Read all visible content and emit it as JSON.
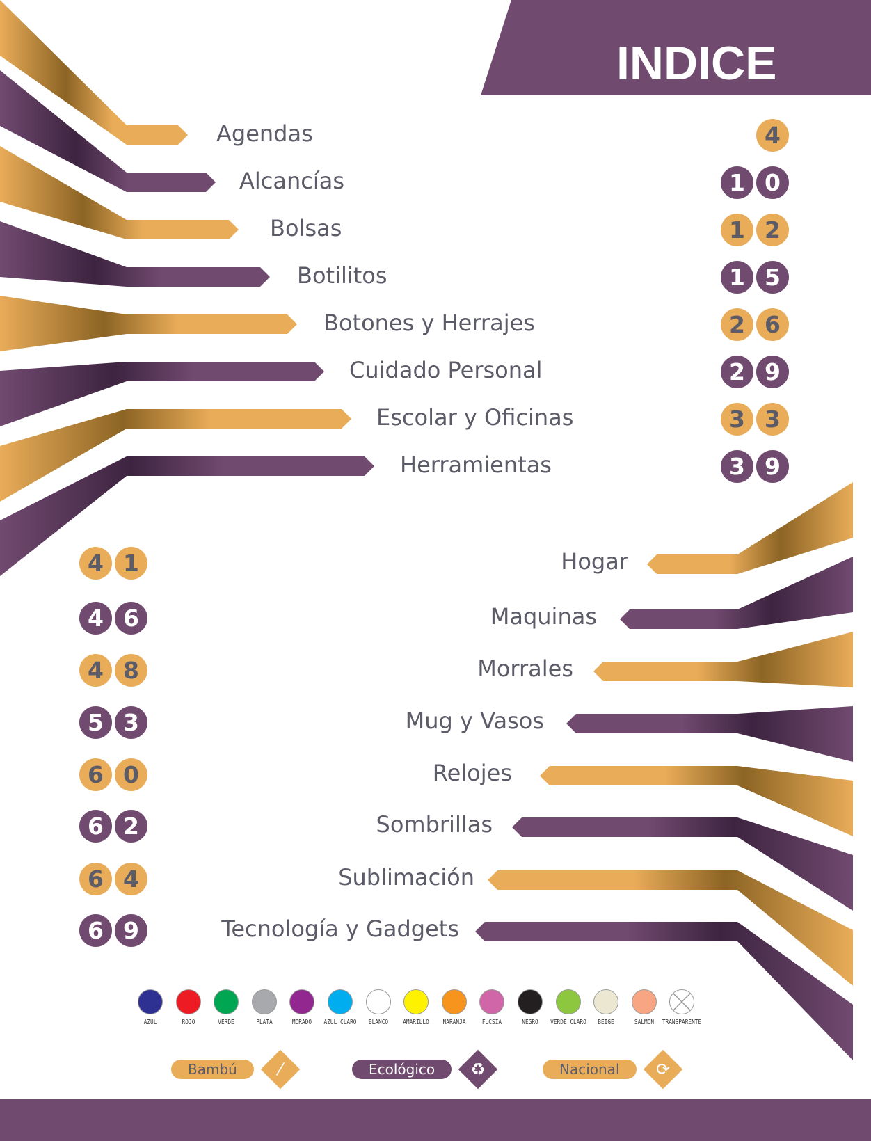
{
  "title": "INDICE",
  "colors": {
    "gold": "#e9ac59",
    "purple": "#714a70",
    "text": "#5c5c69"
  },
  "index_left": [
    {
      "label": "Agendas",
      "page": "4",
      "color": "gold"
    },
    {
      "label": "Alcancías",
      "page": "10",
      "color": "purple"
    },
    {
      "label": "Bolsas",
      "page": "12",
      "color": "gold"
    },
    {
      "label": "Botilitos",
      "page": "15",
      "color": "purple"
    },
    {
      "label": "Botones y Herrajes",
      "page": "26",
      "color": "gold"
    },
    {
      "label": "Cuidado Personal",
      "page": "29",
      "color": "purple"
    },
    {
      "label": "Escolar y Oficinas",
      "page": "33",
      "color": "gold"
    },
    {
      "label": "Herramientas",
      "page": "39",
      "color": "purple"
    }
  ],
  "index_right": [
    {
      "label": "Hogar",
      "page": "41",
      "color": "gold"
    },
    {
      "label": "Maquinas",
      "page": "46",
      "color": "purple"
    },
    {
      "label": "Morrales",
      "page": "48",
      "color": "gold"
    },
    {
      "label": "Mug y Vasos",
      "page": "53",
      "color": "purple"
    },
    {
      "label": "Relojes",
      "page": "60",
      "color": "gold"
    },
    {
      "label": "Sombrillas",
      "page": "62",
      "color": "purple"
    },
    {
      "label": "Sublimación",
      "page": "64",
      "color": "gold"
    },
    {
      "label": "Tecnología y Gadgets",
      "page": "69",
      "color": "purple"
    }
  ],
  "swatches": [
    {
      "name": "AZUL",
      "color": "#2e3192"
    },
    {
      "name": "ROJO",
      "color": "#ed1c24"
    },
    {
      "name": "VERDE",
      "color": "#00a651"
    },
    {
      "name": "PLATA",
      "color": "#a7a9ac"
    },
    {
      "name": "MORADO",
      "color": "#92278f"
    },
    {
      "name": "AZUL CLARO",
      "color": "#00aeef"
    },
    {
      "name": "BLANCO",
      "color": "#ffffff"
    },
    {
      "name": "AMARILLO",
      "color": "#fff200"
    },
    {
      "name": "NARANJA",
      "color": "#f7941d"
    },
    {
      "name": "FUCSIA",
      "color": "#d066a7"
    },
    {
      "name": "NEGRO",
      "color": "#231f20"
    },
    {
      "name": "VERDE CLARO",
      "color": "#8dc63f"
    },
    {
      "name": "BEIGE",
      "color": "#ebe7d1"
    },
    {
      "name": "SALMON",
      "color": "#f7a582"
    },
    {
      "name": "TRANSPARENTE",
      "color": "transparent"
    }
  ],
  "legend": [
    {
      "label": "Bambú",
      "color": "gold",
      "icon": "bamboo-icon"
    },
    {
      "label": "Ecológico",
      "color": "purple",
      "icon": "recycle-icon"
    },
    {
      "label": "Nacional",
      "color": "gold",
      "icon": "rotate-arrows-icon"
    }
  ]
}
